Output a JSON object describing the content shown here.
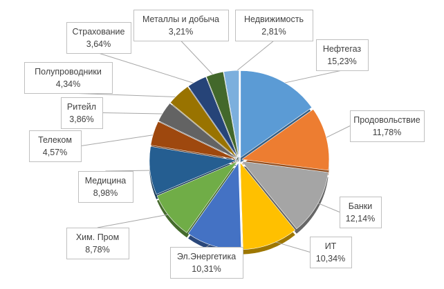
{
  "chart_data": {
    "type": "pie",
    "style": "3d-exploded-callouts",
    "slices": [
      {
        "label": "Нефтегаз",
        "value": 15.23,
        "value_label": "15,23%",
        "color": "#5B9BD5"
      },
      {
        "label": "Продовольствие",
        "value": 11.78,
        "value_label": "11,78%",
        "color": "#ED7D31"
      },
      {
        "label": "Банки",
        "value": 12.14,
        "value_label": "12,14%",
        "color": "#A5A5A5"
      },
      {
        "label": "ИТ",
        "value": 10.34,
        "value_label": "10,34%",
        "color": "#FFC000"
      },
      {
        "label": "Эл.Энергетика",
        "value": 10.31,
        "value_label": "10,31%",
        "color": "#4472C4"
      },
      {
        "label": "Хим. Пром",
        "value": 8.78,
        "value_label": "8,78%",
        "color": "#70AD47"
      },
      {
        "label": "Медицина",
        "value": 8.98,
        "value_label": "8,98%",
        "color": "#255E91"
      },
      {
        "label": "Телеком",
        "value": 4.57,
        "value_label": "4,57%",
        "color": "#9E480E"
      },
      {
        "label": "Ритейл",
        "value": 3.86,
        "value_label": "3,86%",
        "color": "#636363"
      },
      {
        "label": "Полупроводники",
        "value": 4.34,
        "value_label": "4,34%",
        "color": "#997300"
      },
      {
        "label": "Страхование",
        "value": 3.64,
        "value_label": "3,64%",
        "color": "#264478"
      },
      {
        "label": "Металлы и добыча",
        "value": 3.21,
        "value_label": "3,21%",
        "color": "#43682B"
      },
      {
        "label": "Недвижимость",
        "value": 2.81,
        "value_label": "2,81%",
        "color": "#7CAFDD"
      }
    ]
  }
}
